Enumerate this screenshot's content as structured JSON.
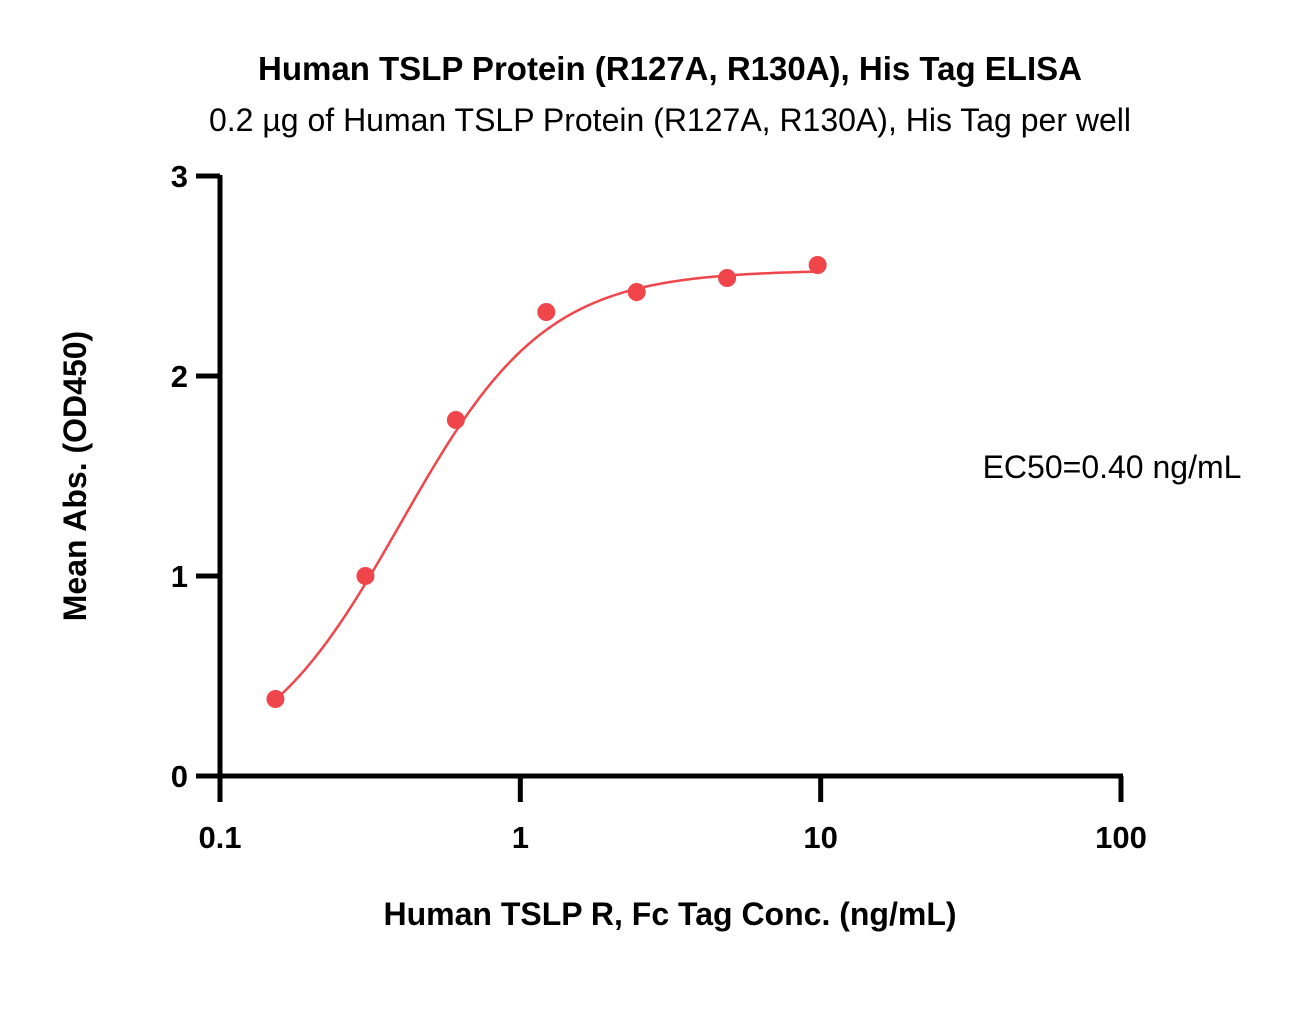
{
  "chart_data": {
    "type": "scatter",
    "title": "Human TSLP Protein (R127A, R130A), His Tag ELISA",
    "subtitle": "0.2 µg of Human TSLP Protein (R127A, R130A), His Tag per well",
    "xlabel": "Human TSLP R, Fc Tag Conc. (ng/mL)",
    "ylabel": "Mean Abs. (OD450)",
    "xscale": "log",
    "xlim": [
      0.1,
      100
    ],
    "ylim": [
      0,
      3
    ],
    "xticks": [
      "0.1",
      "1",
      "10",
      "100"
    ],
    "yticks": [
      "0",
      "1",
      "2",
      "3"
    ],
    "grid": false,
    "color": "#f0454a",
    "series": [
      {
        "x": [
          0.153,
          0.305,
          0.61,
          1.22,
          2.44,
          4.88,
          9.77
        ],
        "y": [
          0.385,
          1.0,
          1.78,
          2.32,
          2.42,
          2.49,
          2.555
        ]
      }
    ],
    "fit": {
      "bottom": 0.0,
      "top": 2.53,
      "ec50": 0.4,
      "hill": 1.8
    },
    "annotation": "EC50=0.40 ng/mL"
  }
}
